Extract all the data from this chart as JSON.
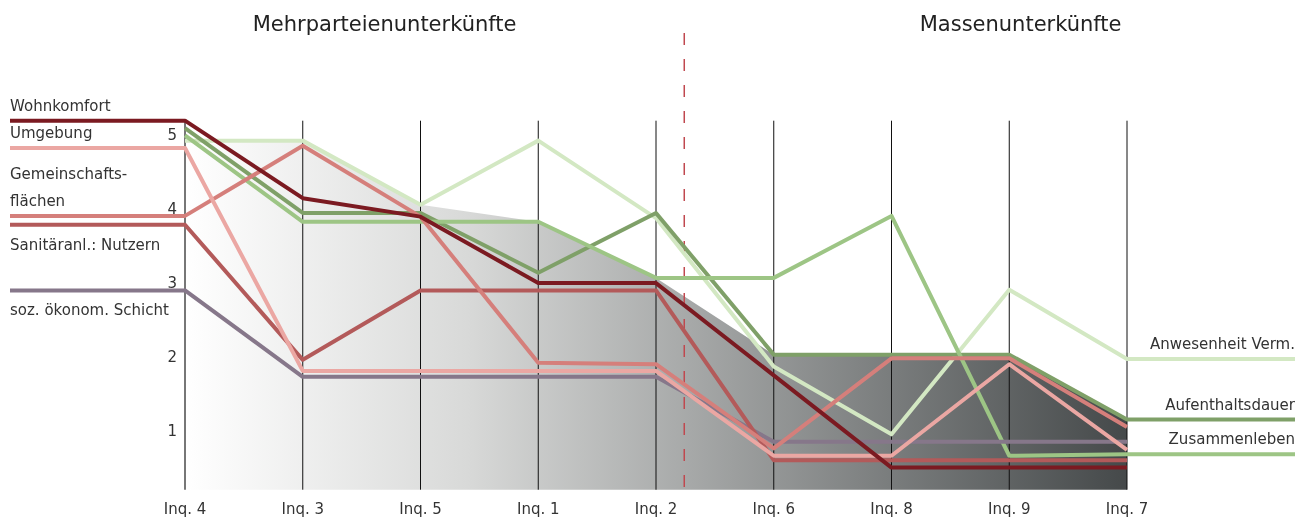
{
  "chart_data": {
    "type": "line",
    "annotations": [
      "Mehrparteienunterkünfte",
      "Massenunterkünfte"
    ],
    "categories": [
      "Inq. 4",
      "Inq. 3",
      "Inq. 5",
      "Inq. 1",
      "Inq. 2",
      "Inq. 6",
      "Inq. 8",
      "Inq. 9",
      "Inq. 7"
    ],
    "ylim": [
      0.2,
      5.2
    ],
    "yticks": [
      1,
      2,
      3,
      4,
      5
    ],
    "grid": "x",
    "legend": "left",
    "line_style": "solid",
    "series": [
      {
        "type": "area",
        "color": "#45494a",
        "values": [
          4.93,
          4.93,
          4.06,
          3.83,
          3.07,
          2.03,
          2.03,
          2.03,
          1.15
        ]
      },
      {
        "name": "Anwesenheit Verm.",
        "color": "#d3e8c3",
        "values": [
          4.93,
          4.93,
          4.06,
          4.93,
          3.88,
          1.87,
          0.95,
          2.91,
          1.97
        ]
      },
      {
        "name": "Aufenthaltsdauer",
        "color": "#7fa068",
        "values": [
          5.1,
          3.95,
          3.95,
          3.14,
          3.95,
          2.03,
          2.03,
          2.03,
          1.15
        ]
      },
      {
        "name": "Zusammenleben",
        "color": "#9dc585",
        "values": [
          5.0,
          3.83,
          3.83,
          3.83,
          3.07,
          3.07,
          3.91,
          0.66,
          0.68
        ]
      },
      {
        "name": "soz. ökonom. Schicht",
        "color": "#86778a",
        "values": [
          2.9,
          1.73,
          1.73,
          1.73,
          1.73,
          0.85,
          0.85,
          0.85,
          0.85
        ]
      },
      {
        "name": "Sanitäranl.: Nutzern",
        "color": "#b35a5a",
        "values": [
          3.79,
          1.96,
          2.9,
          2.9,
          2.9,
          0.6,
          0.6,
          0.6,
          0.6
        ]
      },
      {
        "name": "Gemeinschafts-\nflächen",
        "color": "#d57f7b",
        "values": [
          3.91,
          4.86,
          3.9,
          1.92,
          1.9,
          0.76,
          1.98,
          1.98,
          1.05
        ]
      },
      {
        "name": "Umgebung",
        "color": "#eba7a3",
        "values": [
          4.83,
          1.81,
          1.81,
          1.81,
          1.81,
          0.66,
          0.66,
          1.9,
          0.74
        ]
      },
      {
        "name": "Wohnkomfort",
        "color": "#7b1a21",
        "values": [
          5.2,
          4.15,
          3.9,
          3.0,
          3.0,
          1.75,
          0.5,
          0.5,
          0.5
        ]
      }
    ]
  }
}
